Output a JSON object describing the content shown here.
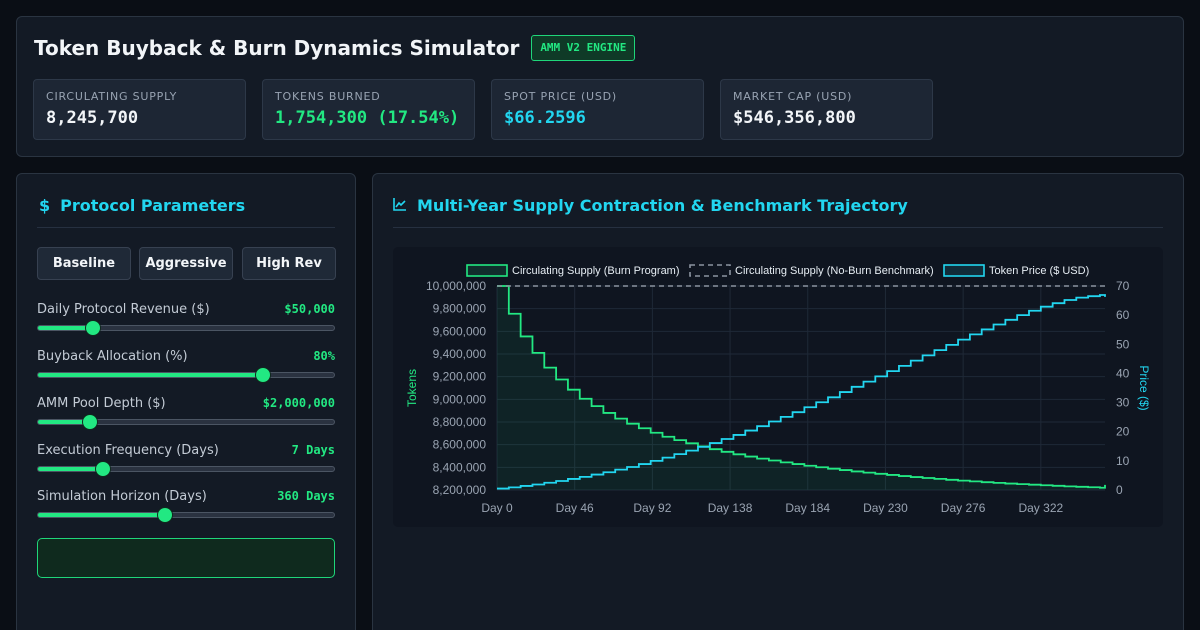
{
  "header": {
    "title": "Token Buyback & Burn Dynamics Simulator",
    "badge": "AMM V2 ENGINE"
  },
  "stats": [
    {
      "label": "CIRCULATING SUPPLY",
      "value": "8,245,700",
      "color": "#f2f5f8"
    },
    {
      "label": "TOKENS BURNED",
      "value": "1,754,300 (17.54%)",
      "color": "#22e882"
    },
    {
      "label": "SPOT PRICE (USD)",
      "value": "$66.2596",
      "color": "#22d6f0"
    },
    {
      "label": "MARKET CAP (USD)",
      "value": "$546,356,800",
      "color": "#f2f5f8"
    }
  ],
  "params_panel": {
    "title": "Protocol Parameters",
    "icon": "dollar-icon",
    "presets": [
      "Baseline",
      "Aggressive",
      "High Rev"
    ],
    "params": [
      {
        "name": "daily-revenue",
        "label": "Daily Protocol Revenue ($)",
        "value": "$50,000",
        "fraction": 0.185
      },
      {
        "name": "buyback-allocation",
        "label": "Buyback Allocation (%)",
        "value": "80%",
        "fraction": 0.76
      },
      {
        "name": "amm-pool-depth",
        "label": "AMM Pool Depth ($)",
        "value": "$2,000,000",
        "fraction": 0.175
      },
      {
        "name": "execution-frequency",
        "label": "Execution Frequency (Days)",
        "value": "7 Days",
        "fraction": 0.22
      },
      {
        "name": "simulation-horizon",
        "label": "Simulation Horizon (Days)",
        "value": "360 Days",
        "fraction": 0.43
      }
    ]
  },
  "chart_panel": {
    "title": "Multi-Year Supply Contraction & Benchmark Trajectory",
    "icon": "line-chart-icon"
  },
  "colors": {
    "accent": "#22e882",
    "cyan": "#22d6f0",
    "benchmark": "#8b93a0"
  },
  "chart_data": {
    "type": "line",
    "x_tick_labels": [
      "Day 0",
      "Day 46",
      "Day 92",
      "Day 138",
      "Day 184",
      "Day 230",
      "Day 276",
      "Day 322"
    ],
    "x_range": [
      0,
      360
    ],
    "ylabel_left": "Tokens",
    "ylabel_right": "Price ($)",
    "y_left_range": [
      8200000,
      10000000
    ],
    "y_left_ticks": [
      "10,000,000",
      "9,800,000",
      "9,600,000",
      "9,400,000",
      "9,200,000",
      "9,000,000",
      "8,800,000",
      "8,600,000",
      "8,400,000",
      "8,200,000"
    ],
    "y_right_range": [
      0,
      70
    ],
    "y_right_ticks": [
      "70",
      "60",
      "50",
      "40",
      "30",
      "20",
      "10",
      "0"
    ],
    "grid": true,
    "legend_position": "top",
    "series": [
      {
        "name": "Circulating Supply (Burn Program)",
        "axis": "left",
        "style": "step-filled",
        "color": "#22e882",
        "x": [
          0,
          7,
          14,
          21,
          28,
          35,
          42,
          49,
          56,
          63,
          70,
          77,
          84,
          91,
          98,
          105,
          112,
          119,
          126,
          133,
          140,
          147,
          154,
          161,
          168,
          175,
          182,
          189,
          196,
          203,
          210,
          217,
          224,
          231,
          238,
          245,
          252,
          259,
          266,
          273,
          280,
          287,
          294,
          301,
          308,
          315,
          322,
          329,
          336,
          343,
          350,
          357,
          360
        ],
        "y": [
          10000000,
          9755000,
          9555000,
          9410000,
          9280000,
          9175000,
          9085000,
          9005000,
          8940000,
          8880000,
          8830000,
          8785000,
          8745000,
          8705000,
          8670000,
          8640000,
          8612000,
          8585000,
          8560000,
          8537000,
          8515000,
          8495000,
          8477000,
          8460000,
          8444000,
          8429000,
          8414000,
          8401000,
          8388000,
          8376000,
          8364000,
          8353000,
          8343000,
          8333000,
          8323000,
          8314000,
          8306000,
          8298000,
          8290000,
          8283000,
          8276000,
          8269000,
          8263000,
          8257000,
          8252000,
          8247000,
          8242000,
          8237000,
          8232000,
          8228000,
          8224000,
          8220000,
          8245700
        ]
      },
      {
        "name": "Circulating Supply (No-Burn Benchmark)",
        "axis": "left",
        "style": "dashed",
        "color": "#8b93a0",
        "x": [
          0,
          360
        ],
        "y": [
          10000000,
          10000000
        ]
      },
      {
        "name": "Token Price ($ USD)",
        "axis": "right",
        "style": "step",
        "color": "#22d6f0",
        "x": [
          0,
          7,
          14,
          21,
          28,
          35,
          42,
          49,
          56,
          63,
          70,
          77,
          84,
          91,
          98,
          105,
          112,
          119,
          126,
          133,
          140,
          147,
          154,
          161,
          168,
          175,
          182,
          189,
          196,
          203,
          210,
          217,
          224,
          231,
          238,
          245,
          252,
          259,
          266,
          273,
          280,
          287,
          294,
          301,
          308,
          315,
          322,
          329,
          336,
          343,
          350,
          357,
          360
        ],
        "y": [
          0.5,
          0.9,
          1.4,
          1.9,
          2.5,
          3.1,
          3.8,
          4.5,
          5.3,
          6.1,
          7.0,
          7.9,
          8.9,
          10.0,
          11.1,
          12.3,
          13.5,
          14.8,
          16.1,
          17.5,
          18.9,
          20.4,
          21.9,
          23.5,
          25.1,
          26.7,
          28.4,
          30.1,
          31.8,
          33.6,
          35.4,
          37.2,
          39.0,
          40.8,
          42.6,
          44.4,
          46.2,
          48.0,
          49.8,
          51.6,
          53.4,
          55.1,
          56.8,
          58.4,
          60.0,
          61.5,
          62.9,
          64.1,
          65.2,
          66.0,
          66.5,
          66.9,
          66.26
        ]
      }
    ]
  }
}
